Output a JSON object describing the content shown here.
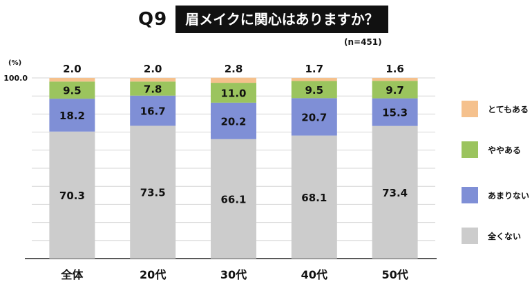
{
  "header": {
    "q_label": "Q9",
    "question": "眉メイクに関心はありますか？",
    "sample": "(n=451)",
    "unit": "(%)"
  },
  "chart_data": {
    "type": "bar",
    "stacked": true,
    "categories": [
      "全体",
      "20代",
      "30代",
      "40代",
      "50代"
    ],
    "ylim": [
      0,
      100
    ],
    "yticks_labeled": [
      "100.0"
    ],
    "grid": true,
    "legend_position": "right",
    "series": [
      {
        "name": "全くない",
        "color": "#cccccc",
        "values": [
          70.3,
          73.5,
          66.1,
          68.1,
          73.4
        ],
        "labels": [
          "70.3",
          "73.5",
          "66.1",
          "68.1",
          "73.4"
        ]
      },
      {
        "name": "あまりない",
        "color": "#7f8fd6",
        "values": [
          18.2,
          16.7,
          20.2,
          20.7,
          15.3
        ],
        "labels": [
          "18.2",
          "16.7",
          "20.2",
          "20.7",
          "15.3"
        ]
      },
      {
        "name": "ややある",
        "color": "#9bc45e",
        "values": [
          9.5,
          7.8,
          11.0,
          9.5,
          9.7
        ],
        "labels": [
          "9.5",
          "7.8",
          "11.0",
          "9.5",
          "9.7"
        ]
      },
      {
        "name": "とてもある",
        "color": "#f5c18d",
        "values": [
          2.0,
          2.0,
          2.8,
          1.7,
          1.6
        ],
        "labels": [
          "2.0",
          "2.0",
          "2.8",
          "1.7",
          "1.6"
        ]
      }
    ],
    "legend_order": [
      "とてもある",
      "ややある",
      "あまりない",
      "全くない"
    ]
  }
}
